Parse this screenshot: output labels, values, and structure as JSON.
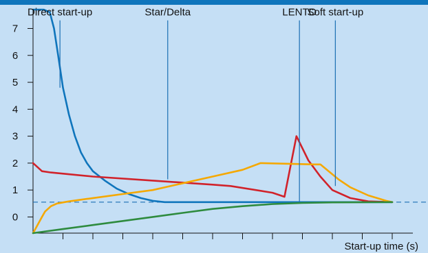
{
  "chart_data": {
    "type": "line",
    "title": "",
    "xlabel": "Start-up time (s)",
    "ylabel": "",
    "ylim": [
      -0.6,
      7.7
    ],
    "y_ticks": [
      "0",
      "1",
      "2",
      "3",
      "4",
      "5",
      "6",
      "7"
    ],
    "grid": false,
    "reference_line": {
      "y": 0.55,
      "style": "dashed"
    },
    "series": [
      {
        "color": "#0f75bc",
        "points": [
          [
            0,
            7.7
          ],
          [
            1.8,
            7.7
          ],
          [
            2.8,
            7.6
          ],
          [
            3.5,
            7.0
          ],
          [
            4.2,
            6.0
          ],
          [
            5,
            4.8
          ],
          [
            6,
            3.8
          ],
          [
            7,
            3.0
          ],
          [
            8,
            2.4
          ],
          [
            9,
            2.0
          ],
          [
            10,
            1.7
          ],
          [
            12,
            1.35
          ],
          [
            14,
            1.05
          ],
          [
            16,
            0.85
          ],
          [
            18,
            0.7
          ],
          [
            20,
            0.6
          ],
          [
            22,
            0.55
          ],
          [
            40,
            0.55
          ],
          [
            55,
            0.55
          ],
          [
            60,
            0.55
          ]
        ]
      },
      {
        "color": "#d1222a",
        "points": [
          [
            0,
            2.0
          ],
          [
            0.5,
            1.9
          ],
          [
            1.5,
            1.7
          ],
          [
            3,
            1.65
          ],
          [
            10,
            1.5
          ],
          [
            20,
            1.35
          ],
          [
            30,
            1.2
          ],
          [
            33,
            1.15
          ],
          [
            40,
            0.9
          ],
          [
            42,
            0.75
          ],
          [
            44,
            3.0
          ],
          [
            46,
            2.1
          ],
          [
            48,
            1.5
          ],
          [
            50,
            1.0
          ],
          [
            53,
            0.7
          ],
          [
            56,
            0.58
          ],
          [
            60,
            0.55
          ]
        ]
      },
      {
        "color": "#f5a800",
        "points": [
          [
            0,
            -0.6
          ],
          [
            0.5,
            -0.4
          ],
          [
            1,
            -0.2
          ],
          [
            1.5,
            0.0
          ],
          [
            2,
            0.2
          ],
          [
            3,
            0.4
          ],
          [
            4,
            0.5
          ],
          [
            6,
            0.58
          ],
          [
            10,
            0.7
          ],
          [
            15,
            0.85
          ],
          [
            20,
            1.0
          ],
          [
            25,
            1.25
          ],
          [
            30,
            1.5
          ],
          [
            35,
            1.75
          ],
          [
            38,
            2.0
          ],
          [
            47,
            1.95
          ],
          [
            48,
            1.95
          ],
          [
            51,
            1.4
          ],
          [
            53,
            1.1
          ],
          [
            56,
            0.8
          ],
          [
            59,
            0.6
          ],
          [
            60,
            0.55
          ]
        ]
      },
      {
        "color": "#2e8b3e",
        "points": [
          [
            0,
            -0.6
          ],
          [
            5,
            -0.45
          ],
          [
            10,
            -0.3
          ],
          [
            15,
            -0.15
          ],
          [
            20,
            0.0
          ],
          [
            25,
            0.15
          ],
          [
            30,
            0.3
          ],
          [
            35,
            0.4
          ],
          [
            40,
            0.48
          ],
          [
            45,
            0.52
          ],
          [
            50,
            0.54
          ],
          [
            60,
            0.55
          ]
        ]
      }
    ],
    "annotations": [
      {
        "text": "Direct start-up",
        "x": 4.5,
        "y_from": 7.3,
        "y_to": 4.8
      },
      {
        "text": "Star/Delta",
        "x": 22.5,
        "y_from": 7.3,
        "y_to": 1.4
      },
      {
        "text": "LENTO",
        "x": 44.5,
        "y_from": 7.3,
        "y_to": 0.55
      },
      {
        "text": "Soft start-up",
        "x": 50.5,
        "y_from": 7.3,
        "y_to": 1.15
      }
    ]
  }
}
